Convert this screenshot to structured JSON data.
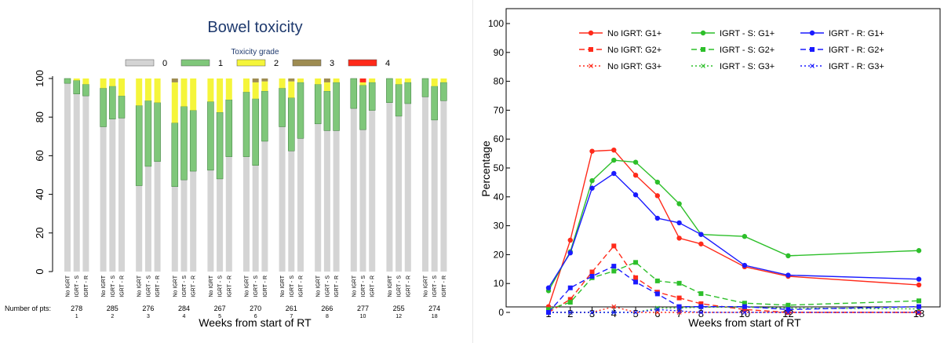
{
  "chart_data": [
    {
      "type": "bar",
      "stacked": true,
      "title": "Bowel toxicity",
      "legend_title": "Toxicity grade",
      "legend_placement": "top",
      "xlabel": "Weeks from start of RT",
      "ylabel": "",
      "ylim": [
        0,
        100
      ],
      "yticks": [
        0,
        20,
        40,
        60,
        80,
        100
      ],
      "grid": false,
      "grades": [
        {
          "name": "0",
          "color": "#d4d4d4"
        },
        {
          "name": "1",
          "color": "#7fc77a"
        },
        {
          "name": "2",
          "color": "#f5f53a"
        },
        {
          "name": "3",
          "color": "#9e8c52"
        },
        {
          "name": "4",
          "color": "#ff2a1a"
        }
      ],
      "arms": [
        "No IGRT",
        "IGRT - S",
        "IGRT - R"
      ],
      "number_of_pts_label": "Number of pts:",
      "weeks": [
        {
          "week": "1",
          "n": "278",
          "bars": [
            [
              97.5,
              2.5,
              0,
              0,
              0
            ],
            [
              92,
              7,
              1,
              0,
              0
            ],
            [
              91,
              6,
              3,
              0,
              0
            ]
          ]
        },
        {
          "week": "2",
          "n": "285",
          "bars": [
            [
              75,
              20,
              5,
              0,
              0
            ],
            [
              79,
              17,
              4,
              0,
              0
            ],
            [
              79.5,
              11.5,
              9,
              0,
              0
            ]
          ]
        },
        {
          "week": "3",
          "n": "276",
          "bars": [
            [
              44.5,
              41.5,
              14,
              0,
              0
            ],
            [
              54.5,
              34,
              11.5,
              0,
              0
            ],
            [
              57,
              30.5,
              12.5,
              0,
              0
            ]
          ]
        },
        {
          "week": "4",
          "n": "284",
          "bars": [
            [
              44,
              33,
              21,
              2,
              0
            ],
            [
              47.5,
              38,
              14.5,
              0,
              0
            ],
            [
              52,
              31.5,
              16.5,
              0,
              0
            ]
          ]
        },
        {
          "week": "5",
          "n": "267",
          "bars": [
            [
              52.5,
              35.5,
              12,
              0,
              0
            ],
            [
              48,
              34.5,
              17.5,
              0,
              0
            ],
            [
              59.5,
              29.5,
              11,
              0,
              0
            ]
          ]
        },
        {
          "week": "6",
          "n": "270",
          "bars": [
            [
              59.5,
              33.5,
              7,
              0,
              0
            ],
            [
              55,
              34.5,
              8.5,
              2,
              0
            ],
            [
              67.5,
              26,
              5,
              1.5,
              0
            ]
          ]
        },
        {
          "week": "7",
          "n": "261",
          "bars": [
            [
              75,
              20,
              5,
              0,
              0
            ],
            [
              62.5,
              27.5,
              8.5,
              1.5,
              0
            ],
            [
              69,
              29,
              2,
              0,
              0
            ]
          ]
        },
        {
          "week": "8",
          "n": "266",
          "bars": [
            [
              76.5,
              20.5,
              3,
              0,
              0
            ],
            [
              73,
              20.5,
              4.5,
              2,
              0
            ],
            [
              73,
              25,
              2,
              0,
              0
            ]
          ]
        },
        {
          "week": "10",
          "n": "277",
          "bars": [
            [
              84.5,
              15.5,
              0,
              0,
              0
            ],
            [
              73.5,
              23,
              1.5,
              0,
              2
            ],
            [
              83.5,
              14.5,
              2,
              0,
              0
            ]
          ]
        },
        {
          "week": "12",
          "n": "255",
          "bars": [
            [
              87.5,
              12.5,
              0,
              0,
              0
            ],
            [
              80.5,
              16.5,
              3,
              0,
              0
            ],
            [
              87,
              11,
              2,
              0,
              0
            ]
          ]
        },
        {
          "week": "18",
          "n": "274",
          "bars": [
            [
              90.5,
              9.5,
              0,
              0,
              0
            ],
            [
              78.5,
              17.5,
              4,
              0,
              0
            ],
            [
              88.5,
              9.5,
              2,
              0,
              0
            ]
          ]
        }
      ]
    },
    {
      "type": "line",
      "title": "",
      "xlabel": "Weeks from start of RT",
      "ylabel": "Percentage",
      "xlim": [
        1,
        18
      ],
      "ylim": [
        0,
        100
      ],
      "x": [
        1,
        2,
        3,
        4,
        5,
        6,
        7,
        8,
        10,
        12,
        18
      ],
      "xticks": [
        1,
        2,
        3,
        4,
        5,
        6,
        7,
        8,
        10,
        12,
        18
      ],
      "yticks": [
        0,
        10,
        20,
        30,
        40,
        50,
        60,
        70,
        80,
        90,
        100
      ],
      "grid": false,
      "legend_placement": "top",
      "series": [
        {
          "name": "No IGRT: G1+",
          "color": "#ff2a1a",
          "dash": "solid",
          "marker": "circle",
          "values": [
            2,
            25,
            55.8,
            56.2,
            47.5,
            40.4,
            25.7,
            23.7,
            15.8,
            12.5,
            9.5
          ]
        },
        {
          "name": "No IGRT: G2+",
          "color": "#ff2a1a",
          "dash": "dashed",
          "marker": "square",
          "values": [
            0,
            4.5,
            14,
            23,
            12,
            7,
            5,
            3,
            1,
            0,
            0
          ]
        },
        {
          "name": "No IGRT: G3+",
          "color": "#ff2a1a",
          "dash": "dotted",
          "marker": "x",
          "values": [
            0,
            0,
            0,
            2,
            0,
            0,
            0,
            0,
            0,
            0,
            0
          ]
        },
        {
          "name": "IGRT - S: G1+",
          "color": "#2dbf2a",
          "dash": "solid",
          "marker": "circle",
          "values": [
            7.5,
            21,
            45.6,
            52.7,
            52,
            45.1,
            37.6,
            27,
            26.3,
            19.6,
            21.4
          ]
        },
        {
          "name": "IGRT - S: G2+",
          "color": "#2dbf2a",
          "dash": "dashed",
          "marker": "square",
          "values": [
            1,
            3.5,
            12,
            14.3,
            17.3,
            10.9,
            10.1,
            6.5,
            3.2,
            2.5,
            4
          ]
        },
        {
          "name": "IGRT - S: G3+",
          "color": "#2dbf2a",
          "dash": "dotted",
          "marker": "x",
          "values": [
            0,
            0,
            0,
            0,
            0,
            1.5,
            1.5,
            1.8,
            1.8,
            1.5,
            1.2
          ]
        },
        {
          "name": "IGRT - R: G1+",
          "color": "#1a1aff",
          "dash": "solid",
          "marker": "circle",
          "values": [
            8.5,
            20.6,
            43,
            48.1,
            40.7,
            32.6,
            31,
            27,
            16.3,
            12.9,
            11.5
          ]
        },
        {
          "name": "IGRT - R: G2+",
          "color": "#1a1aff",
          "dash": "dashed",
          "marker": "square",
          "values": [
            0,
            8.5,
            12.5,
            16,
            10.5,
            6.4,
            2,
            2,
            2,
            1,
            2
          ]
        },
        {
          "name": "IGRT - R: G3+",
          "color": "#1a1aff",
          "dash": "dotted",
          "marker": "x",
          "values": [
            0,
            0,
            0,
            0,
            0,
            1,
            0.5,
            0,
            0,
            0,
            0
          ]
        }
      ]
    }
  ]
}
